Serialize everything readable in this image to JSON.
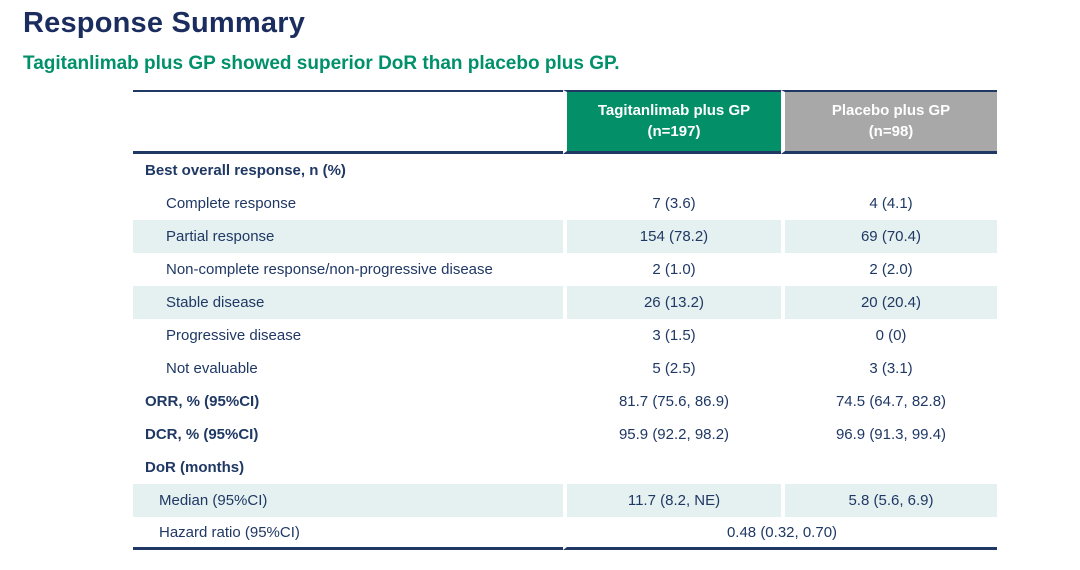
{
  "page": {
    "title": "Response Summary",
    "subtitle": "Tagitanlimab plus GP showed superior DoR than placebo plus GP."
  },
  "colors": {
    "title_navy": "#1B2D5E",
    "accent_green": "#00916B",
    "header_green_bg": "#038F68",
    "header_gray_bg": "#A8A8A8",
    "row_shade": "#E5F1F0",
    "text_navy": "#1F3864",
    "border_navy": "#1F3864"
  },
  "table": {
    "columns": [
      {
        "label": "Tagitanlimab plus GP",
        "n": "(n=197)"
      },
      {
        "label": "Placebo plus GP",
        "n": "(n=98)"
      }
    ],
    "rows": [
      {
        "label": "Best overall response, n (%)",
        "tagitanlimab": "",
        "placebo": ""
      },
      {
        "label": "Complete response",
        "tagitanlimab": "7 (3.6)",
        "placebo": "4 (4.1)"
      },
      {
        "label": "Partial response",
        "tagitanlimab": "154 (78.2)",
        "placebo": "69 (70.4)"
      },
      {
        "label": "Non-complete response/non-progressive disease",
        "tagitanlimab": "2 (1.0)",
        "placebo": "2 (2.0)"
      },
      {
        "label": "Stable disease",
        "tagitanlimab": "26 (13.2)",
        "placebo": "20 (20.4)"
      },
      {
        "label": "Progressive disease",
        "tagitanlimab": "3 (1.5)",
        "placebo": "0 (0)"
      },
      {
        "label": "Not evaluable",
        "tagitanlimab": "5 (2.5)",
        "placebo": "3 (3.1)"
      },
      {
        "label": "ORR, % (95%CI)",
        "tagitanlimab": "81.7 (75.6, 86.9)",
        "placebo": "74.5 (64.7, 82.8)"
      },
      {
        "label": "DCR, % (95%CI)",
        "tagitanlimab": "95.9 (92.2, 98.2)",
        "placebo": "96.9 (91.3, 99.4)"
      },
      {
        "label": "DoR (months)",
        "tagitanlimab": "",
        "placebo": ""
      },
      {
        "label": "Median (95%CI)",
        "tagitanlimab": "11.7 (8.2, NE)",
        "placebo": "5.8 (5.6, 6.9)"
      },
      {
        "label": "Hazard ratio (95%CI)",
        "combined": "0.48 (0.32, 0.70)"
      }
    ]
  }
}
